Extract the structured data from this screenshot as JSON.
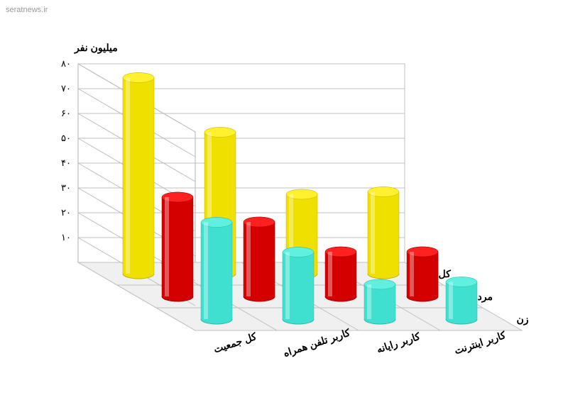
{
  "watermark": "seratnews.ir",
  "chart": {
    "type": "3d-bar",
    "y_axis": {
      "title": "میلیون نفر",
      "min": 0,
      "max": 80,
      "tick_step": 10,
      "ticks": [
        "۱۰",
        "۲۰",
        "۳۰",
        "۴۰",
        "۵۰",
        "۶۰",
        "۷۰",
        "۸۰"
      ]
    },
    "x_categories": [
      "کل جمعیت",
      "کاربر تلفن همراه",
      "کاربر رایانه",
      "کاربر اینترنت"
    ],
    "z_series": [
      {
        "label": "زن",
        "color": "#40e0d0",
        "top_color": "#5ff0e0",
        "side_color": "#2bb8ab"
      },
      {
        "label": "مرد",
        "color": "#d40000",
        "top_color": "#ff2020",
        "side_color": "#a00000"
      },
      {
        "label": "کل",
        "color": "#f0e000",
        "top_color": "#fff030",
        "side_color": "#c0b400"
      }
    ],
    "values": {
      "زن": [
        39,
        27,
        14,
        15
      ],
      "مرد": [
        40,
        30,
        18,
        18
      ],
      "کل": [
        79,
        57,
        32,
        33
      ]
    },
    "grid_color": "#c0c0c0",
    "floor_color": "#f0f0f0",
    "wall_color": "#ffffff",
    "side_wall_stroke": "#b0b0b0",
    "axis_fontsize": 14,
    "tick_fontsize": 13,
    "bar_radius": 22,
    "ellipse_ry": 7
  }
}
